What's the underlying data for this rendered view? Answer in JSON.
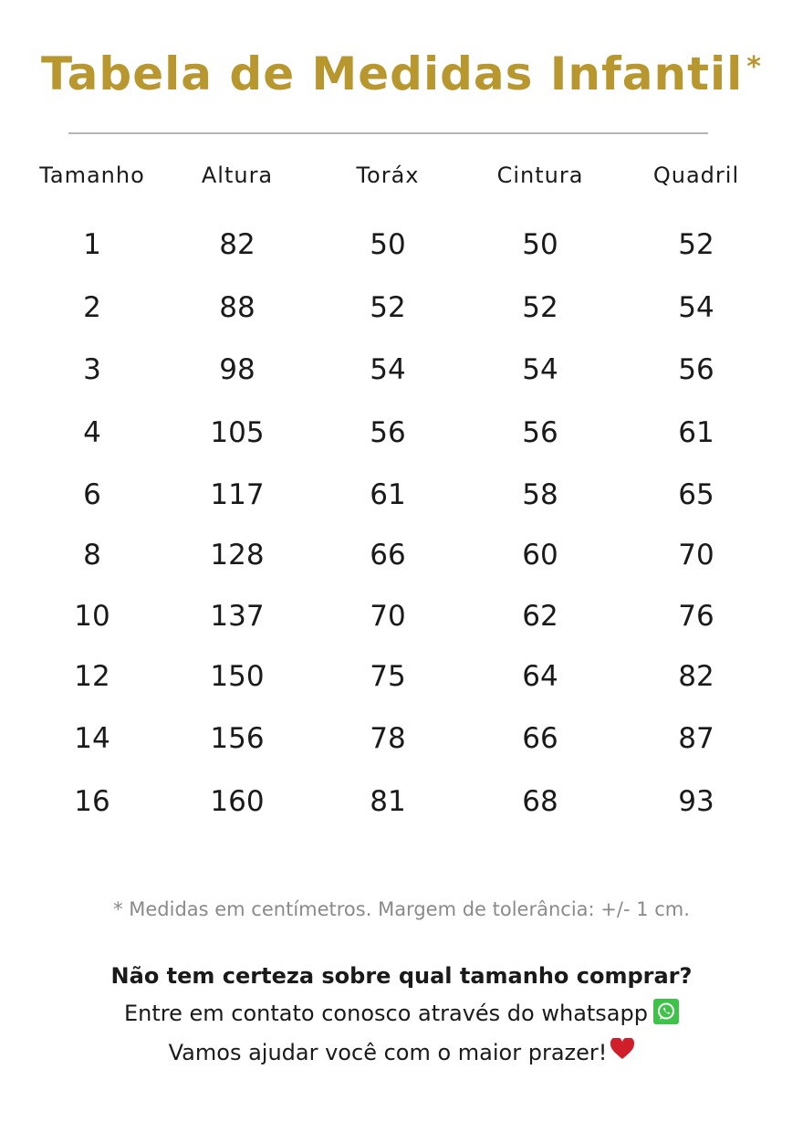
{
  "title": "Tabela de Medidas Infantil",
  "title_asterisk": "*",
  "colors": {
    "title": "#b8972f",
    "whatsapp": "#3fc14a",
    "heart": "#d01f2a"
  },
  "table": {
    "headers": [
      "Tamanho",
      "Altura",
      "Toráx",
      "Cintura",
      "Quadril"
    ],
    "rows": [
      [
        "1",
        "82",
        "50",
        "50",
        "52"
      ],
      [
        "2",
        "88",
        "52",
        "52",
        "54"
      ],
      [
        "3",
        "98",
        "54",
        "54",
        "56"
      ],
      [
        "4",
        "105",
        "56",
        "56",
        "61"
      ],
      [
        "6",
        "117",
        "61",
        "58",
        "65"
      ],
      [
        "8",
        "128",
        "66",
        "60",
        "70"
      ],
      [
        "10",
        "137",
        "70",
        "62",
        "76"
      ],
      [
        "12",
        "150",
        "75",
        "64",
        "82"
      ],
      [
        "14",
        "156",
        "78",
        "66",
        "87"
      ],
      [
        "16",
        "160",
        "81",
        "68",
        "93"
      ]
    ]
  },
  "note": "* Medidas em centímetros. Margem de tolerância: +/- 1 cm.",
  "footer": {
    "question": "Não tem certeza sobre qual tamanho comprar?",
    "contact": "Entre em contato conosco através do whatsapp",
    "closing": "Vamos ajudar você com o maior prazer!",
    "icons": [
      "whatsapp-icon",
      "heart-icon"
    ]
  }
}
